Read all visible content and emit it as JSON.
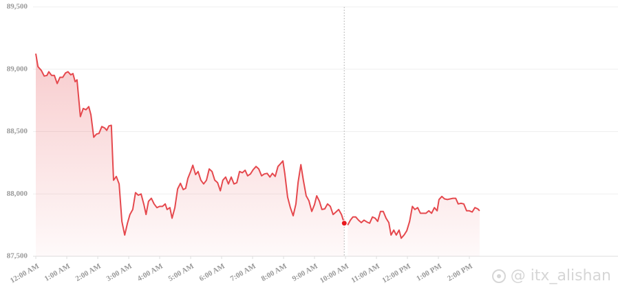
{
  "chart_data": {
    "type": "line",
    "color": "#e5484d",
    "grid": true,
    "crosshair": true,
    "highlight_index": 116,
    "watermark": "@ itx_alishan",
    "ylim": [
      87500,
      89500
    ],
    "yticks": [
      {
        "value": 87500,
        "label": "87,500"
      },
      {
        "value": 88000,
        "label": "88,000"
      },
      {
        "value": 88500,
        "label": "88,500"
      },
      {
        "value": 89000,
        "label": "89,000"
      },
      {
        "value": 89500,
        "label": "89,500"
      }
    ],
    "xlim": [
      -0.09,
      18.8
    ],
    "xticks": [
      {
        "value": 0,
        "label": "12:00 AM"
      },
      {
        "value": 1,
        "label": "1:00 AM"
      },
      {
        "value": 2,
        "label": "2:00 AM"
      },
      {
        "value": 3,
        "label": "3:00 AM"
      },
      {
        "value": 4,
        "label": "4:00 AM"
      },
      {
        "value": 5,
        "label": "5:00 AM"
      },
      {
        "value": 6,
        "label": "6:00 AM"
      },
      {
        "value": 7,
        "label": "7:00 AM"
      },
      {
        "value": 8,
        "label": "8:00 AM"
      },
      {
        "value": 9,
        "label": "9:00 AM"
      },
      {
        "value": 10,
        "label": "10:00 AM"
      },
      {
        "value": 11,
        "label": "11:00 AM"
      },
      {
        "value": 12,
        "label": "12:00 PM"
      },
      {
        "value": 13,
        "label": "1:00 PM"
      },
      {
        "value": 14,
        "label": "2:00 PM"
      }
    ],
    "x": [
      0,
      0.07,
      0.18,
      0.27,
      0.36,
      0.42,
      0.51,
      0.6,
      0.69,
      0.78,
      0.87,
      0.96,
      1.04,
      1.13,
      1.2,
      1.27,
      1.33,
      1.44,
      1.53,
      1.62,
      1.71,
      1.78,
      1.87,
      1.96,
      2.04,
      2.13,
      2.22,
      2.29,
      2.36,
      2.44,
      2.51,
      2.6,
      2.69,
      2.78,
      2.87,
      2.96,
      3.04,
      3.13,
      3.22,
      3.31,
      3.4,
      3.49,
      3.56,
      3.64,
      3.73,
      3.82,
      3.91,
      4,
      4.09,
      4.18,
      4.24,
      4.33,
      4.4,
      4.49,
      4.58,
      4.67,
      4.76,
      4.84,
      4.91,
      5,
      5.07,
      5.16,
      5.24,
      5.33,
      5.42,
      5.51,
      5.6,
      5.69,
      5.78,
      5.87,
      5.96,
      6.04,
      6.13,
      6.22,
      6.31,
      6.4,
      6.49,
      6.58,
      6.67,
      6.76,
      6.84,
      6.93,
      7.02,
      7.11,
      7.2,
      7.29,
      7.38,
      7.47,
      7.56,
      7.64,
      7.73,
      7.82,
      7.91,
      7.98,
      8.04,
      8.13,
      8.22,
      8.31,
      8.4,
      8.47,
      8.56,
      8.64,
      8.73,
      8.82,
      8.91,
      9,
      9.07,
      9.16,
      9.24,
      9.33,
      9.42,
      9.51,
      9.6,
      9.69,
      9.78,
      9.87,
      9.96,
      9.98,
      10.07,
      10.16,
      10.24,
      10.33,
      10.42,
      10.51,
      10.6,
      10.69,
      10.78,
      10.87,
      10.96,
      11.04,
      11.13,
      11.22,
      11.31,
      11.4,
      11.47,
      11.56,
      11.64,
      11.73,
      11.8,
      11.89,
      11.98,
      12.07,
      12.16,
      12.24,
      12.33,
      12.42,
      12.51,
      12.6,
      12.69,
      12.78,
      12.87,
      12.96,
      13.02,
      13.11,
      13.2,
      13.29,
      13.38,
      13.47,
      13.56,
      13.64,
      13.73,
      13.82,
      13.91,
      14,
      14.09,
      14.18,
      14.27,
      14.33
    ],
    "values": [
      89125,
      89020,
      88990,
      88945,
      88950,
      88980,
      88950,
      88950,
      88885,
      88935,
      88935,
      88970,
      88980,
      88955,
      88965,
      88900,
      88915,
      88620,
      88685,
      88675,
      88700,
      88635,
      88455,
      88480,
      88485,
      88540,
      88530,
      88510,
      88545,
      88550,
      88110,
      88140,
      88080,
      87780,
      87670,
      87765,
      87835,
      87875,
      88010,
      87990,
      88000,
      87915,
      87835,
      87940,
      87965,
      87920,
      87890,
      87900,
      87900,
      87920,
      87875,
      87890,
      87805,
      87890,
      88040,
      88085,
      88035,
      88045,
      88125,
      88180,
      88230,
      88155,
      88180,
      88110,
      88080,
      88110,
      88200,
      88180,
      88110,
      88090,
      88025,
      88110,
      88135,
      88080,
      88135,
      88080,
      88090,
      88180,
      88170,
      88190,
      88145,
      88160,
      88195,
      88220,
      88200,
      88145,
      88160,
      88165,
      88135,
      88165,
      88140,
      88220,
      88245,
      88265,
      88165,
      87975,
      87890,
      87825,
      87920,
      88095,
      88235,
      88110,
      87985,
      87945,
      87860,
      87915,
      87985,
      87940,
      87875,
      87880,
      87920,
      87900,
      87835,
      87855,
      87875,
      87835,
      87765,
      null,
      87750,
      87790,
      87815,
      87815,
      87790,
      87770,
      87790,
      87775,
      87765,
      87815,
      87805,
      87780,
      87860,
      87860,
      87805,
      87770,
      87670,
      87710,
      87670,
      87710,
      87645,
      87670,
      87705,
      87780,
      87900,
      87875,
      87890,
      87845,
      87845,
      87845,
      87865,
      87845,
      87890,
      87865,
      87955,
      87980,
      87960,
      87955,
      87960,
      87965,
      87965,
      87920,
      87925,
      87920,
      87865,
      87865,
      87855,
      87890,
      87880,
      87865
    ]
  }
}
